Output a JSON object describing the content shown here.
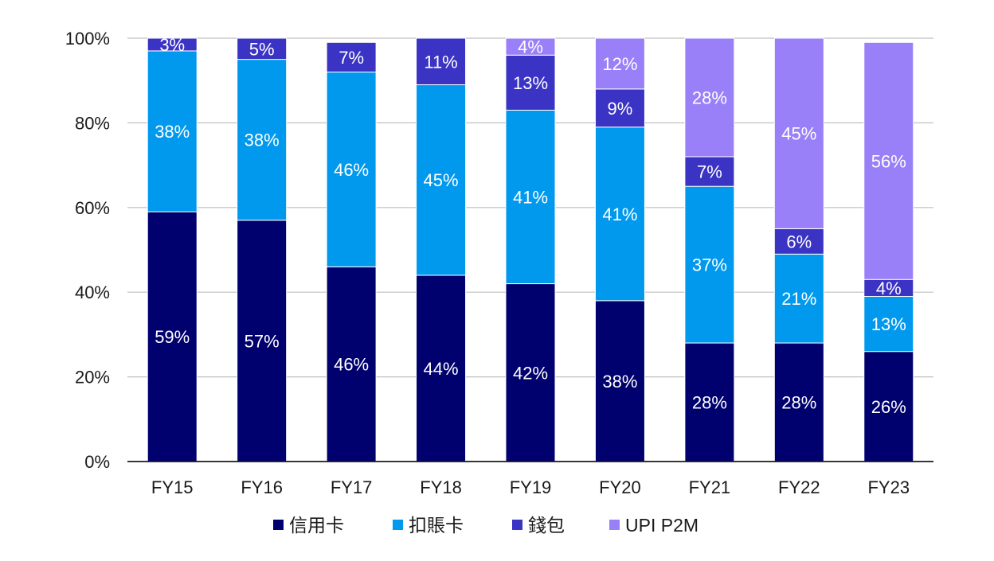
{
  "chart_data": {
    "type": "bar",
    "stacked": true,
    "categories": [
      "FY15",
      "FY16",
      "FY17",
      "FY18",
      "FY19",
      "FY20",
      "FY21",
      "FY22",
      "FY23"
    ],
    "series": [
      {
        "name": "信用卡",
        "color": "#00006e",
        "values": [
          59,
          57,
          46,
          44,
          42,
          38,
          28,
          28,
          26
        ]
      },
      {
        "name": "扣賬卡",
        "color": "#0099ee",
        "values": [
          38,
          38,
          46,
          45,
          41,
          41,
          37,
          21,
          13
        ]
      },
      {
        "name": "錢包",
        "color": "#3a33c4",
        "values": [
          3,
          5,
          7,
          11,
          13,
          9,
          7,
          6,
          4
        ]
      },
      {
        "name": "UPI P2M",
        "color": "#9980f8",
        "values": [
          0,
          0,
          0,
          0,
          4,
          12,
          28,
          45,
          56
        ]
      }
    ],
    "ylim": [
      0,
      100
    ],
    "yticks": [
      "0%",
      "20%",
      "40%",
      "60%",
      "80%",
      "100%"
    ],
    "value_suffix": "%",
    "grid": true,
    "legend": "bottom"
  }
}
